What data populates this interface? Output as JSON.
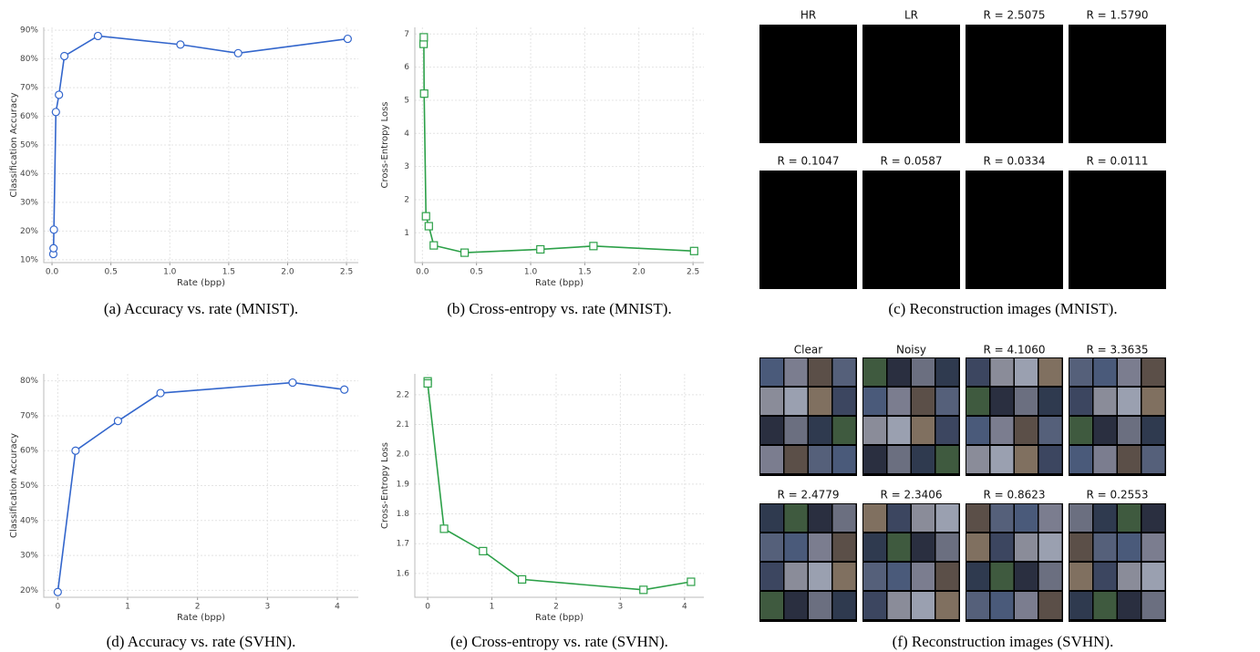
{
  "chart_data": [
    {
      "type": "line",
      "caption": "(a) Accuracy vs. rate (MNIST).",
      "x_label": "Rate (bpp)",
      "y_label": "Classification Accuracy",
      "marker": "circle",
      "grid": true,
      "series": [
        {
          "color": "#3366cc",
          "x": [
            0.011,
            0.013,
            0.016,
            0.033,
            0.059,
            0.105,
            0.39,
            1.09,
            1.58,
            2.51
          ],
          "values": [
            12,
            14,
            20.5,
            61.5,
            67.5,
            81,
            88,
            85,
            82,
            87
          ]
        }
      ],
      "xlim": [
        -0.07,
        2.6
      ],
      "xticks": [
        {
          "value": 0,
          "label": "0.0"
        },
        0.5,
        {
          "value": 1,
          "label": "1.0"
        },
        1.5,
        {
          "value": 2,
          "label": "2.0"
        },
        2.5
      ],
      "ylim": [
        9,
        91
      ],
      "yticks": [
        {
          "value": 10,
          "label": "10%"
        },
        {
          "value": 20,
          "label": "20%"
        },
        {
          "value": 30,
          "label": "30%"
        },
        {
          "value": 40,
          "label": "40%"
        },
        {
          "value": 50,
          "label": "50%"
        },
        {
          "value": 60,
          "label": "60%"
        },
        {
          "value": 70,
          "label": "70%"
        },
        {
          "value": 80,
          "label": "80%"
        },
        {
          "value": 90,
          "label": "90%"
        }
      ]
    },
    {
      "type": "line",
      "caption": "(b) Cross-entropy vs. rate (MNIST).",
      "x_label": "Rate (bpp)",
      "y_label": "Cross-Entropy Loss",
      "marker": "square",
      "grid": true,
      "series": [
        {
          "color": "#2ca048",
          "x": [
            0.011,
            0.013,
            0.016,
            0.033,
            0.059,
            0.105,
            0.39,
            1.09,
            1.58,
            2.51
          ],
          "values": [
            6.7,
            6.9,
            5.2,
            1.5,
            1.2,
            0.62,
            0.4,
            0.5,
            0.6,
            0.45
          ]
        }
      ],
      "xlim": [
        -0.07,
        2.6
      ],
      "xticks": [
        {
          "value": 0,
          "label": "0.0"
        },
        0.5,
        {
          "value": 1,
          "label": "1.0"
        },
        1.5,
        {
          "value": 2,
          "label": "2.0"
        },
        2.5
      ],
      "ylim": [
        0.1,
        7.2
      ],
      "yticks": [
        1,
        2,
        3,
        4,
        5,
        6,
        7
      ]
    },
    {
      "type": "line",
      "caption": "(d) Accuracy vs. rate (SVHN).",
      "x_label": "Rate (bpp)",
      "y_label": "Classification Accuracy",
      "marker": "circle",
      "grid": true,
      "series": [
        {
          "color": "#3366cc",
          "x": [
            0.0,
            0.255,
            0.862,
            1.47,
            3.36,
            4.1
          ],
          "values": [
            19.5,
            60,
            68.5,
            76.5,
            79.5,
            77.5
          ]
        }
      ],
      "xlim": [
        -0.2,
        4.3
      ],
      "xticks": [
        0,
        1,
        2,
        3,
        4
      ],
      "ylim": [
        18,
        82
      ],
      "yticks": [
        {
          "value": 20,
          "label": "20%"
        },
        {
          "value": 30,
          "label": "30%"
        },
        {
          "value": 40,
          "label": "40%"
        },
        {
          "value": 50,
          "label": "50%"
        },
        {
          "value": 60,
          "label": "60%"
        },
        {
          "value": 70,
          "label": "70%"
        },
        {
          "value": 80,
          "label": "80%"
        }
      ]
    },
    {
      "type": "line",
      "caption": "(e) Cross-entropy vs. rate (SVHN).",
      "x_label": "Rate (bpp)",
      "y_label": "Cross-Entropy Loss",
      "marker": "square",
      "grid": true,
      "series": [
        {
          "color": "#2ca048",
          "x": [
            0.0,
            0.0,
            0.255,
            0.862,
            1.47,
            3.36,
            4.1
          ],
          "values": [
            2.245,
            2.238,
            1.75,
            1.675,
            1.58,
            1.545,
            1.572
          ]
        }
      ],
      "xlim": [
        -0.2,
        4.3
      ],
      "xticks": [
        0,
        1,
        2,
        3,
        4
      ],
      "ylim": [
        1.52,
        2.27
      ],
      "yticks": [
        1.6,
        1.7,
        1.8,
        1.9,
        {
          "value": 2,
          "label": "2.0"
        },
        2.1,
        2.2
      ]
    }
  ],
  "image_panels": [
    {
      "kind": "mnist",
      "caption": "(c) Reconstruction images (MNIST).",
      "titles": [
        "HR",
        "LR",
        "R = 2.5075",
        "R = 1.5790",
        "R = 0.1047",
        "R = 0.0587",
        "R = 0.0334",
        "R = 0.0111"
      ]
    },
    {
      "kind": "svhn",
      "caption": "(f) Reconstruction images (SVHN).",
      "titles": [
        "Clear",
        "Noisy",
        "R = 4.1060",
        "R = 3.3635",
        "R = 2.4779",
        "R = 2.3406",
        "R = 0.8623",
        "R = 0.2553"
      ]
    }
  ]
}
